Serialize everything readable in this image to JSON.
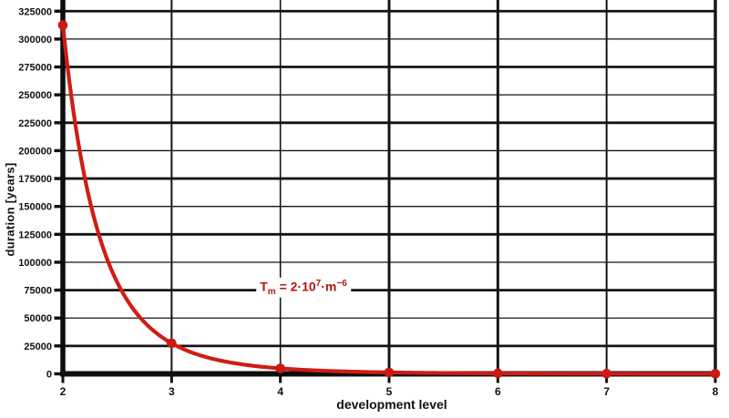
{
  "chart_data": {
    "type": "line",
    "title": "",
    "xlabel": "development level",
    "ylabel": "duration [years]",
    "x": [
      2,
      3,
      4,
      5,
      6,
      7,
      8
    ],
    "values": [
      312500,
      27435,
      4883,
      1280,
      429,
      170,
      76
    ],
    "formula": {
      "coefficient": 20000000,
      "exponent": -6,
      "variable": "m"
    },
    "annotation": {
      "base": "T",
      "subscript": "m",
      "equals": " = 2·10",
      "exponent1": "7",
      "dot_m": "·m",
      "exponent2": "−6"
    },
    "xticks": [
      2,
      3,
      4,
      5,
      6,
      7,
      8
    ],
    "yticks": [
      0,
      25000,
      50000,
      75000,
      100000,
      125000,
      150000,
      175000,
      200000,
      225000,
      250000,
      275000,
      300000,
      325000
    ],
    "xlim": [
      2,
      8
    ],
    "ylim": [
      0,
      335000
    ],
    "grid": true,
    "legend": "none",
    "colors": {
      "curve": "#cf1d15",
      "marker": "#cc1912",
      "annotation": "#b21510",
      "grid": "#141414",
      "axis": "#0d0d0d",
      "text": "#111111",
      "background": "#ffffff"
    }
  }
}
